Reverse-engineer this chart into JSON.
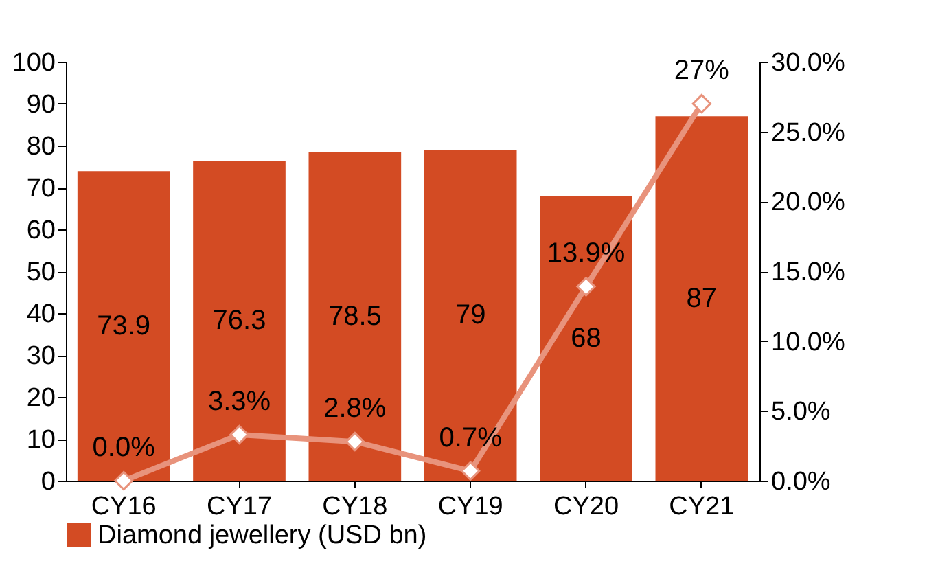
{
  "chart_data": {
    "type": "bar",
    "categories": [
      "CY16",
      "CY17",
      "CY18",
      "CY19",
      "CY20",
      "CY21"
    ],
    "series": [
      {
        "name": "Diamond jewellery (USD bn)",
        "color": "#d34b23",
        "values": [
          73.9,
          76.3,
          78.5,
          79,
          68,
          87
        ],
        "data_labels": true
      },
      {
        "type": "line",
        "axis": "y2",
        "color": "#e8937c",
        "values": [
          0,
          3.3,
          2.8,
          0.7,
          13.9,
          27
        ],
        "value_labels": [
          "0.0%",
          "3.3%",
          "2.8%",
          "0.7%",
          "13.9%",
          "27%"
        ],
        "marker": "diamond",
        "line_style": "solid"
      }
    ],
    "ylim": [
      0,
      100
    ],
    "yticks": [
      0,
      10,
      20,
      30,
      40,
      50,
      60,
      70,
      80,
      90,
      100
    ],
    "y2lim": [
      0,
      30
    ],
    "y2ticks": [
      {
        "value": 0,
        "label": "0.0%"
      },
      {
        "value": 5,
        "label": "5.0%"
      },
      {
        "value": 10,
        "label": "10.0%"
      },
      {
        "value": 15,
        "label": "15.0%"
      },
      {
        "value": 20,
        "label": "20.0%"
      },
      {
        "value": 25,
        "label": "25.0%"
      },
      {
        "value": 30,
        "label": "30.0%"
      }
    ],
    "grid": false,
    "legend": "bottom"
  }
}
